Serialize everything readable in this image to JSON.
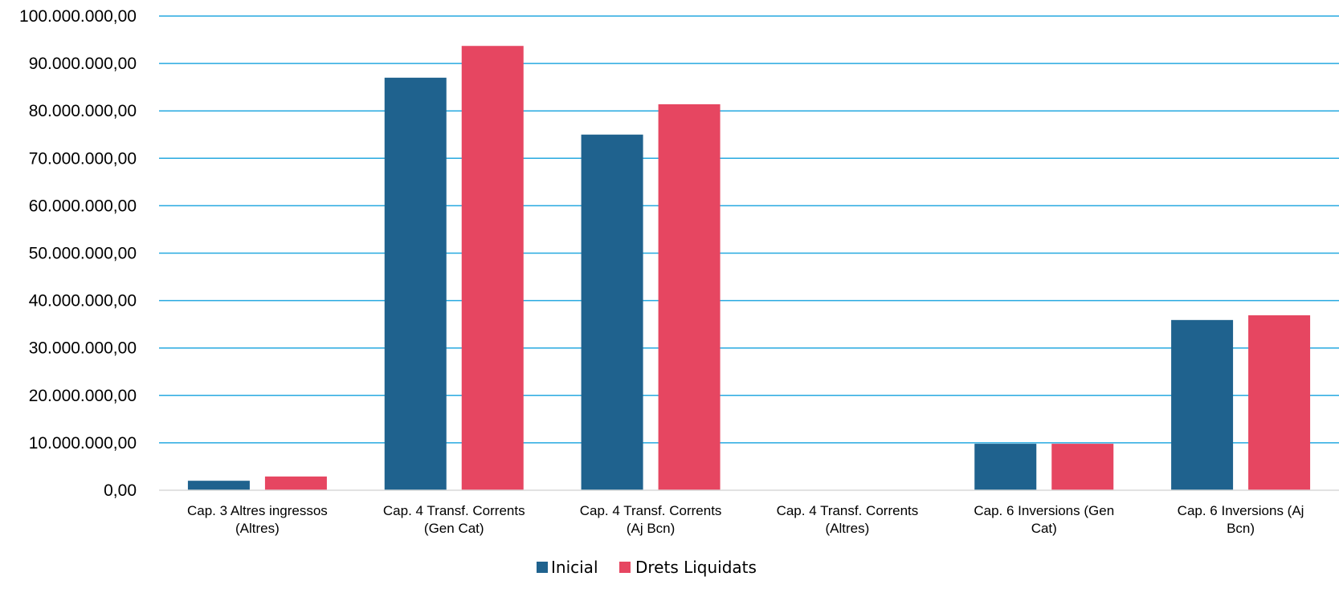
{
  "chart_data": {
    "type": "bar",
    "categories": [
      [
        "Cap. 3 Altres ingressos",
        "(Altres)"
      ],
      [
        "Cap. 4 Transf. Corrents",
        "(Gen Cat)"
      ],
      [
        "Cap. 4 Transf. Corrents",
        "(Aj Bcn)"
      ],
      [
        "Cap. 4 Transf. Corrents",
        "(Altres)"
      ],
      [
        "Cap. 6 Inversions (Gen",
        "Cat)"
      ],
      [
        "Cap. 6 Inversions (Aj",
        "Bcn)"
      ]
    ],
    "series": [
      {
        "name": "Inicial",
        "color": "#1f628e",
        "values": [
          2000000,
          87000000,
          75000000,
          0,
          9800000,
          35900000
        ]
      },
      {
        "name": "Drets Liquidats",
        "color": "#e64661",
        "values": [
          2900000,
          93700000,
          81400000,
          0,
          9800000,
          36900000
        ]
      }
    ],
    "yticks": [
      "0,00",
      "10.000.000,00",
      "20.000.000,00",
      "30.000.000,00",
      "40.000.000,00",
      "50.000.000,00",
      "60.000.000,00",
      "70.000.000,00",
      "80.000.000,00",
      "90.000.000,00",
      "100.000.000,00"
    ],
    "ylim": [
      0,
      100000000
    ],
    "grid": true,
    "grid_color": "#26a9e0",
    "legend": "bottom-center"
  }
}
